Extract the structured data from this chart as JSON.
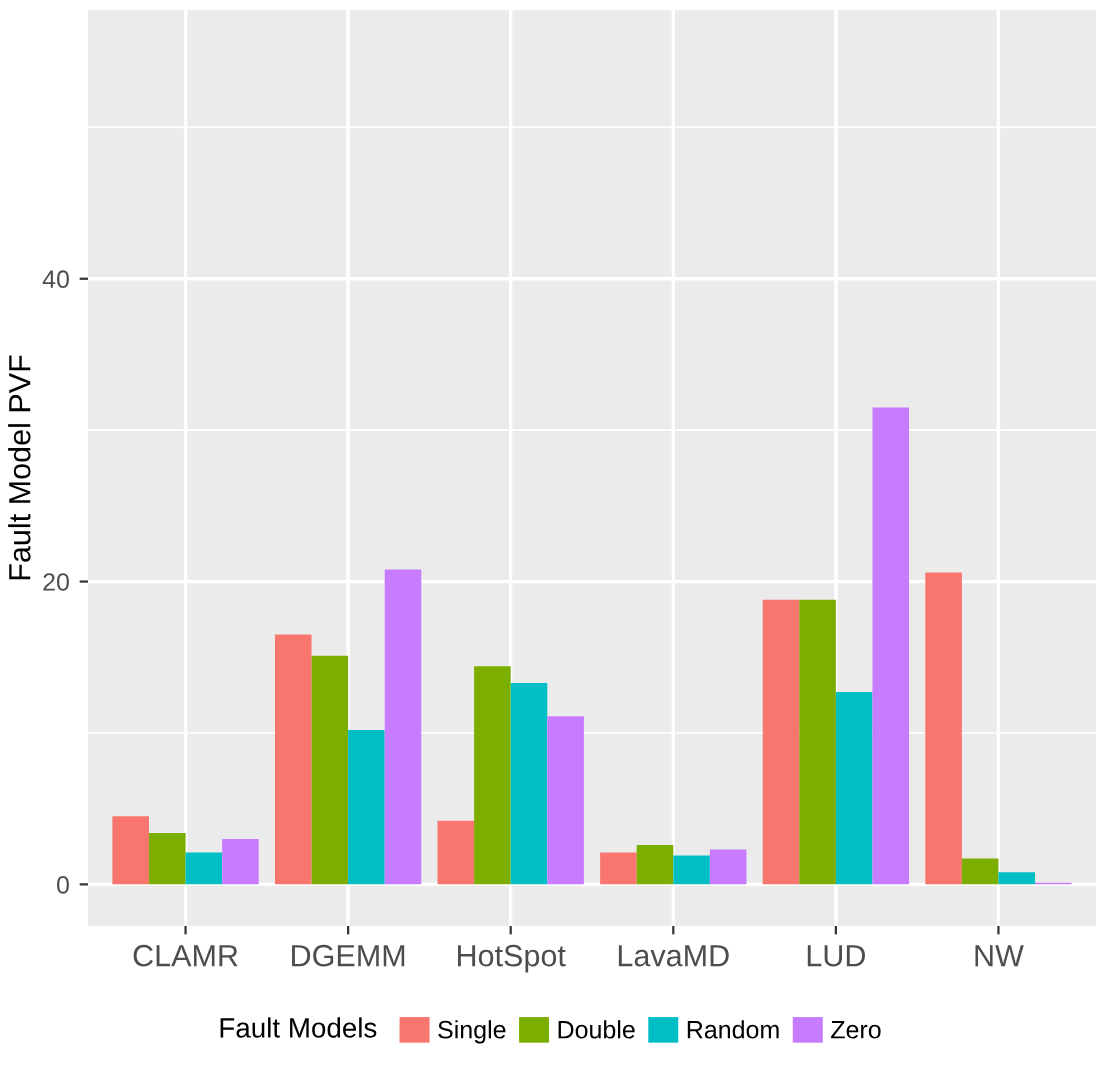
{
  "chart_data": {
    "type": "bar",
    "ylabel": "Fault Model PVF",
    "legend_title": "Fault Models",
    "categories": [
      "CLAMR",
      "DGEMM",
      "HotSpot",
      "LavaMD",
      "LUD",
      "NW"
    ],
    "series": [
      {
        "name": "Single",
        "color": "#f8766d",
        "values": [
          4.5,
          16.5,
          4.2,
          2.1,
          18.8,
          20.6
        ]
      },
      {
        "name": "Double",
        "color": "#7cae00",
        "values": [
          3.4,
          15.1,
          14.4,
          2.6,
          18.8,
          1.7
        ]
      },
      {
        "name": "Random",
        "color": "#00bfc4",
        "values": [
          2.1,
          10.2,
          13.3,
          1.9,
          12.7,
          0.8
        ]
      },
      {
        "name": "Zero",
        "color": "#c77cff",
        "values": [
          3.0,
          20.8,
          11.1,
          2.3,
          31.5,
          0.1
        ]
      }
    ],
    "ylim": [
      -2.75,
      57.75
    ],
    "yticks": [
      0,
      20,
      40
    ],
    "grid": true,
    "legend": "bottom"
  }
}
